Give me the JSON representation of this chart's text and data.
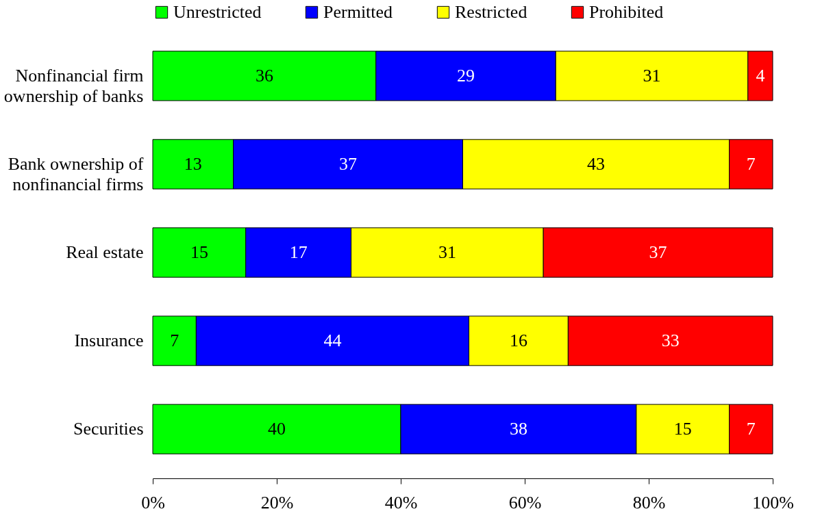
{
  "chart_data": {
    "type": "bar",
    "orientation": "horizontal",
    "stacked": true,
    "data_labels": true,
    "grid": false,
    "legend": "top",
    "tick_labels": "x",
    "categories": [
      "Nonfinancial firm ownership of banks",
      "Bank ownership of nonfinancial firms",
      "Real estate",
      "Insurance",
      "Securities"
    ],
    "series": [
      {
        "name": "Unrestricted",
        "color": "#00ff00",
        "values": [
          36,
          13,
          15,
          7,
          40
        ]
      },
      {
        "name": "Permitted",
        "color": "#0000ff",
        "values": [
          29,
          37,
          17,
          44,
          38
        ]
      },
      {
        "name": "Restricted",
        "color": "#ffff00",
        "values": [
          31,
          43,
          31,
          16,
          15
        ]
      },
      {
        "name": "Prohibited",
        "color": "#ff0000",
        "values": [
          4,
          7,
          37,
          33,
          7
        ]
      }
    ],
    "xlim": [
      0,
      100
    ],
    "xticks": [
      {
        "value": 0,
        "label": "0%"
      },
      {
        "value": 20,
        "label": "20%"
      },
      {
        "value": 40,
        "label": "40%"
      },
      {
        "value": 60,
        "label": "60%"
      },
      {
        "value": 80,
        "label": "80%"
      },
      {
        "value": 100,
        "label": "100%"
      }
    ]
  }
}
